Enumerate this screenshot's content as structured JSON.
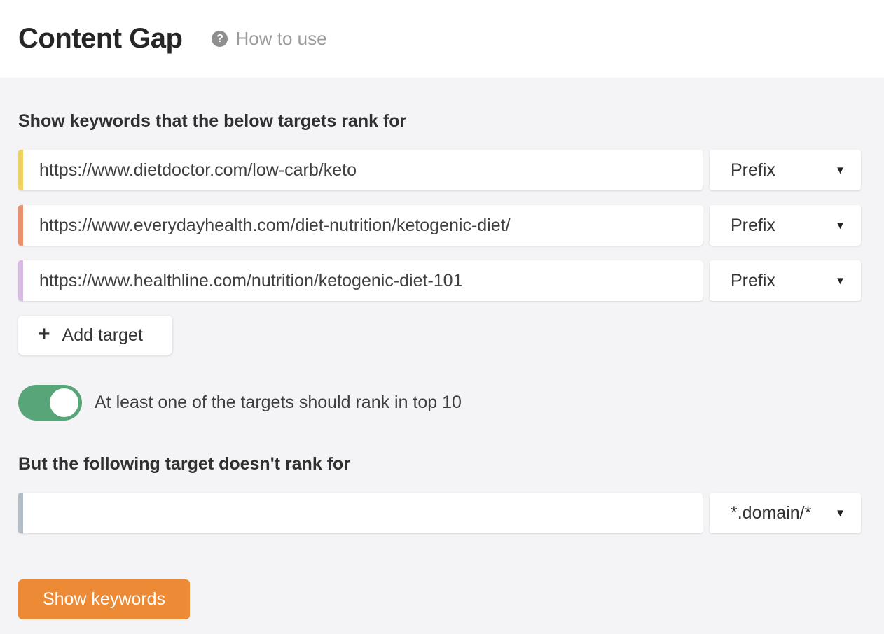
{
  "header": {
    "title": "Content Gap",
    "help": {
      "label": "How to use",
      "icon_glyph": "?"
    }
  },
  "targets_section": {
    "heading": "Show keywords that the below targets rank for",
    "rows": [
      {
        "value": "https://www.dietdoctor.com/low-carb/keto",
        "mode": "Prefix",
        "accent_color": "#f0d264"
      },
      {
        "value": "https://www.everydayhealth.com/diet-nutrition/ketogenic-diet/",
        "mode": "Prefix",
        "accent_color": "#e9916f"
      },
      {
        "value": "https://www.healthline.com/nutrition/ketogenic-diet-101",
        "mode": "Prefix",
        "accent_color": "#d8bbe3"
      }
    ],
    "add_target": {
      "label": "Add target",
      "icon_glyph": "+"
    },
    "top10_toggle": {
      "on": true,
      "label": "At least one of the targets should rank in top 10",
      "on_color": "#57a578"
    }
  },
  "exclude_section": {
    "heading": "But the following target doesn't rank for",
    "row": {
      "value": "",
      "mode": "*.domain/*",
      "accent_color": "#b2bdc5"
    }
  },
  "footer_actions": {
    "show_keywords": {
      "label": "Show keywords",
      "color": "#ed8a35"
    }
  },
  "icons": {
    "caret_down": "▼"
  },
  "theme": {
    "page_background": "#f4f4f6",
    "header_background": "#ffffff",
    "panel_background": "#ffffff"
  }
}
